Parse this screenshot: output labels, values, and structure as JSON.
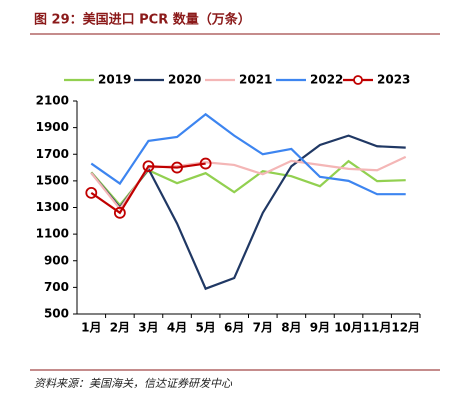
{
  "chart_data": {
    "type": "line",
    "title": "图 29：美国进口 PCR 数量（万条）",
    "source": "资料来源：美国海关，信达证券研发中心",
    "categories": [
      "1月",
      "2月",
      "3月",
      "4月",
      "5月",
      "6月",
      "7月",
      "8月",
      "9月",
      "10月",
      "11月",
      "12月"
    ],
    "series": [
      {
        "name": "2019",
        "color": "#92d050",
        "values": [
          1565,
          1318,
          1580,
          1483,
          1558,
          1415,
          1573,
          1535,
          1460,
          1648,
          1498,
          1505
        ]
      },
      {
        "name": "2020",
        "color": "#203864",
        "values": [
          1560,
          1300,
          1590,
          1180,
          690,
          770,
          1260,
          1610,
          1770,
          1840,
          1760,
          1750
        ]
      },
      {
        "name": "2021",
        "color": "#f4b6b6",
        "values": [
          1560,
          1290,
          1600,
          1610,
          1640,
          1620,
          1550,
          1650,
          1620,
          1590,
          1580,
          1680
        ]
      },
      {
        "name": "2022",
        "color": "#3d85f0",
        "values": [
          1630,
          1480,
          1800,
          1830,
          2000,
          1840,
          1700,
          1740,
          1530,
          1500,
          1400,
          1400
        ]
      },
      {
        "name": "2023",
        "color": "#c00000",
        "marker": "circle",
        "values": [
          1410,
          1260,
          1610,
          1600,
          1630,
          null,
          null,
          null,
          null,
          null,
          null,
          null
        ]
      }
    ],
    "ylim": [
      500,
      2100
    ],
    "yticks": [
      500,
      700,
      900,
      1100,
      1300,
      1500,
      1700,
      1900,
      2100
    ],
    "grid": false
  }
}
